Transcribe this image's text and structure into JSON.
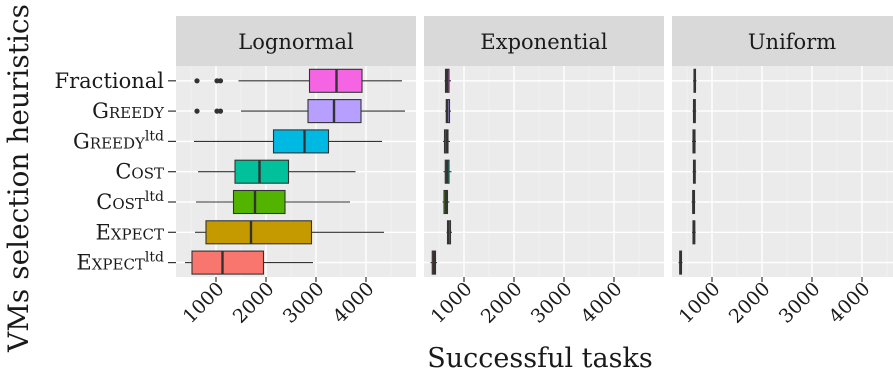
{
  "chart_data": {
    "type": "boxplot",
    "xlabel": "Successful tasks",
    "ylabel": "VMs selection heuristics",
    "xlim": [
      200,
      5000
    ],
    "x_ticks": [
      1000,
      2000,
      3000,
      4000
    ],
    "categories": [
      {
        "label": "Fractional",
        "small_caps": false,
        "sup": ""
      },
      {
        "label": "Greedy",
        "small_caps": true,
        "sup": ""
      },
      {
        "label": "Greedy",
        "small_caps": true,
        "sup": "ltd"
      },
      {
        "label": "Cost",
        "small_caps": true,
        "sup": ""
      },
      {
        "label": "Cost",
        "small_caps": true,
        "sup": "ltd"
      },
      {
        "label": "Expect",
        "small_caps": true,
        "sup": ""
      },
      {
        "label": "Expect",
        "small_caps": true,
        "sup": "ltd"
      }
    ],
    "colors": [
      "#F564E3",
      "#B79FFF",
      "#00B9E3",
      "#00C19A",
      "#53B400",
      "#C49A00",
      "#F8766D"
    ],
    "panels": [
      {
        "title": "Lognormal",
        "boxes": [
          {
            "min": 1450,
            "q1": 2870,
            "median": 3410,
            "q3": 3920,
            "max": 4720,
            "outliers": [
              620,
              1020,
              1090
            ]
          },
          {
            "min": 1500,
            "q1": 2840,
            "median": 3360,
            "q3": 3900,
            "max": 4780,
            "outliers": [
              620,
              1020,
              1090
            ]
          },
          {
            "min": 560,
            "q1": 2150,
            "median": 2770,
            "q3": 3250,
            "max": 4320,
            "outliers": []
          },
          {
            "min": 640,
            "q1": 1380,
            "median": 1870,
            "q3": 2450,
            "max": 3790,
            "outliers": []
          },
          {
            "min": 600,
            "q1": 1350,
            "median": 1780,
            "q3": 2380,
            "max": 3680,
            "outliers": []
          },
          {
            "min": 580,
            "q1": 800,
            "median": 1700,
            "q3": 2910,
            "max": 4360,
            "outliers": []
          },
          {
            "min": 380,
            "q1": 520,
            "median": 1130,
            "q3": 1950,
            "max": 2940,
            "outliers": []
          }
        ]
      },
      {
        "title": "Exponential",
        "boxes": [
          {
            "min": 610,
            "q1": 630,
            "median": 660,
            "q3": 700,
            "max": 740,
            "outliers": []
          },
          {
            "min": 620,
            "q1": 645,
            "median": 665,
            "q3": 710,
            "max": 740,
            "outliers": []
          },
          {
            "min": 580,
            "q1": 610,
            "median": 650,
            "q3": 680,
            "max": 720,
            "outliers": []
          },
          {
            "min": 590,
            "q1": 625,
            "median": 660,
            "q3": 700,
            "max": 750,
            "outliers": []
          },
          {
            "min": 570,
            "q1": 600,
            "median": 640,
            "q3": 670,
            "max": 710,
            "outliers": []
          },
          {
            "min": 650,
            "q1": 670,
            "median": 690,
            "q3": 730,
            "max": 760,
            "outliers": []
          },
          {
            "min": 330,
            "q1": 365,
            "median": 400,
            "q3": 430,
            "max": 460,
            "outliers": []
          }
        ]
      },
      {
        "title": "Uniform",
        "boxes": [
          {
            "min": 620,
            "q1": 640,
            "median": 655,
            "q3": 670,
            "max": 690,
            "outliers": []
          },
          {
            "min": 610,
            "q1": 630,
            "median": 650,
            "q3": 665,
            "max": 685,
            "outliers": []
          },
          {
            "min": 600,
            "q1": 620,
            "median": 640,
            "q3": 660,
            "max": 680,
            "outliers": []
          },
          {
            "min": 610,
            "q1": 630,
            "median": 645,
            "q3": 665,
            "max": 685,
            "outliers": []
          },
          {
            "min": 590,
            "q1": 615,
            "median": 630,
            "q3": 650,
            "max": 670,
            "outliers": []
          },
          {
            "min": 600,
            "q1": 620,
            "median": 640,
            "q3": 655,
            "max": 675,
            "outliers": []
          },
          {
            "min": 330,
            "q1": 355,
            "median": 370,
            "q3": 390,
            "max": 410,
            "outliers": []
          }
        ]
      }
    ]
  }
}
